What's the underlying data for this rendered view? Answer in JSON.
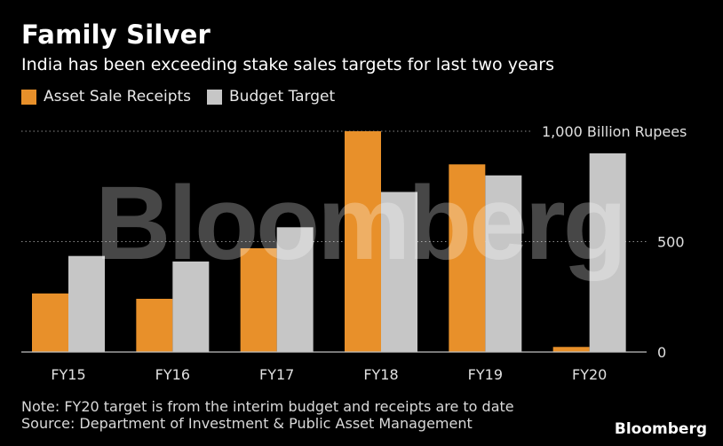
{
  "header": {
    "title": "Family Silver",
    "subtitle": "India has been exceeding stake sales targets for last two years"
  },
  "footer": {
    "note": "Note: FY20 target is from the interim budget and receipts are to date",
    "source": "Source: Department of Investment & Public Asset Management",
    "brand": "Bloomberg"
  },
  "watermark": "Bloomberg",
  "colors": {
    "receipts": "#e8902a",
    "target": "#c6c6c6",
    "grid": "#8a8a8a",
    "axis": "#bfbfbf",
    "text": "#e0e0e0"
  },
  "chart_data": {
    "type": "bar",
    "title": "Family Silver",
    "categories": [
      "FY15",
      "FY16",
      "FY17",
      "FY18",
      "FY19",
      "FY20"
    ],
    "series": [
      {
        "name": "Asset Sale Receipts",
        "values": [
          265,
          241,
          470,
          1000,
          850,
          23
        ]
      },
      {
        "name": "Budget Target",
        "values": [
          435,
          410,
          565,
          725,
          800,
          900
        ]
      }
    ],
    "yticks": [
      {
        "value": 0,
        "label": "0"
      },
      {
        "value": 500,
        "label": "500"
      },
      {
        "value": 1000,
        "label": "1,000 Billion Rupees"
      }
    ],
    "ylim": [
      0,
      1000
    ],
    "grid": true,
    "legend": "top-left",
    "xlabel": "",
    "ylabel": "Billion Rupees"
  }
}
